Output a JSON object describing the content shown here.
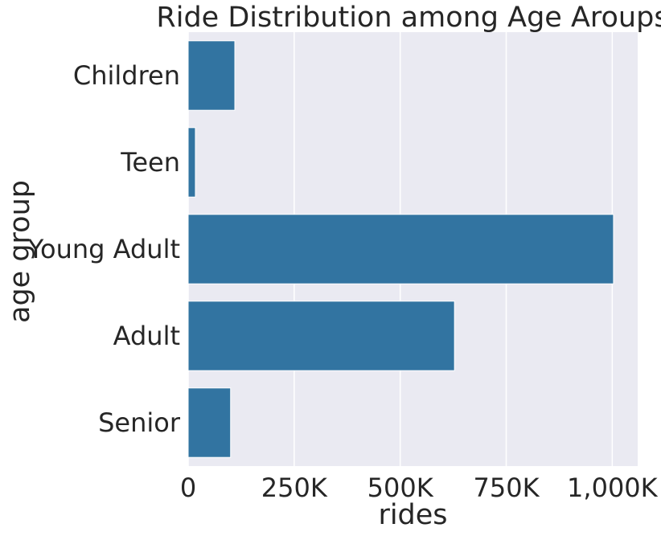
{
  "chart_data": {
    "type": "bar",
    "orientation": "horizontal",
    "title": "Ride Distribution among Age Aroups",
    "xlabel": "rides",
    "ylabel": "age group",
    "categories": [
      "Children",
      "Teen",
      "Young Adult",
      "Adult",
      "Senior"
    ],
    "values": [
      110000,
      17000,
      1003000,
      628000,
      100000
    ],
    "xlim": [
      0,
      1060000
    ],
    "xticks": [
      0,
      250000,
      500000,
      750000,
      1000000
    ],
    "xtick_labels": [
      "0",
      "250K",
      "500K",
      "750K",
      "1,000K"
    ],
    "grid": true,
    "colors": {
      "bar": "#3274a1",
      "plot_background": "#eaeaf2",
      "grid": "#ffffff",
      "text": "#262626"
    }
  }
}
